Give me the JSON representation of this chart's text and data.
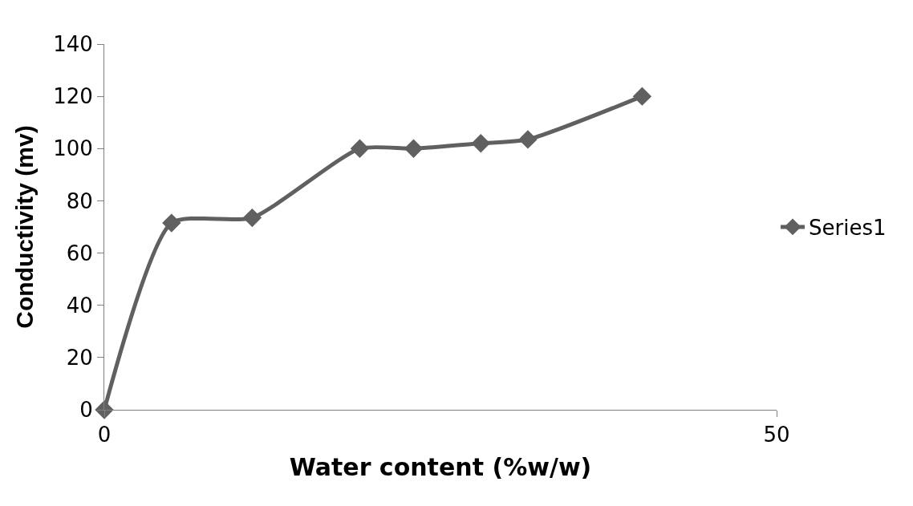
{
  "chart_data": {
    "type": "line",
    "xlabel": "Water content (%w/w)",
    "ylabel": "Conductivity (mv)",
    "x": [
      0,
      5,
      11,
      19,
      23,
      28,
      31.5,
      40
    ],
    "series": [
      {
        "name": "Series1",
        "color": "#606060",
        "values": [
          0,
          71.5,
          73.5,
          100,
          100,
          102,
          103.5,
          120
        ]
      }
    ],
    "xlim": [
      0,
      50
    ],
    "xticks": [
      0,
      50
    ],
    "ylim": [
      0,
      140
    ],
    "yticks": [
      0,
      20,
      40,
      60,
      80,
      100,
      120,
      140
    ],
    "legend": "right",
    "marker": "diamond",
    "line_style": "solid"
  }
}
